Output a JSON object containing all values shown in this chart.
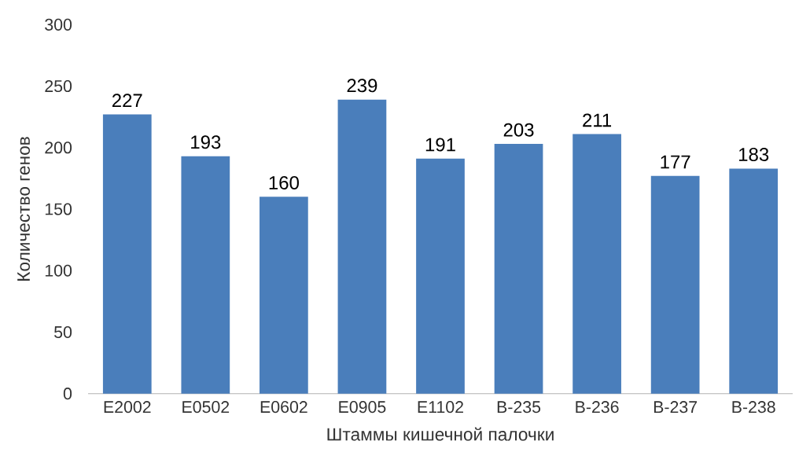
{
  "chart_data": {
    "type": "bar",
    "xlabel": "Штаммы кишечной палочки",
    "ylabel": "Количество генов",
    "categories": [
      "E2002",
      "E0502",
      "E0602",
      "E0905",
      "E1102",
      "B-235",
      "B-236",
      "B-237",
      "B-238"
    ],
    "values": [
      227,
      193,
      160,
      239,
      191,
      203,
      211,
      177,
      183
    ],
    "color": "#4a7ebb",
    "ylim": [
      0,
      300
    ],
    "yticks": [
      0,
      50,
      100,
      150,
      200,
      250,
      300
    ],
    "data_labels": true
  }
}
